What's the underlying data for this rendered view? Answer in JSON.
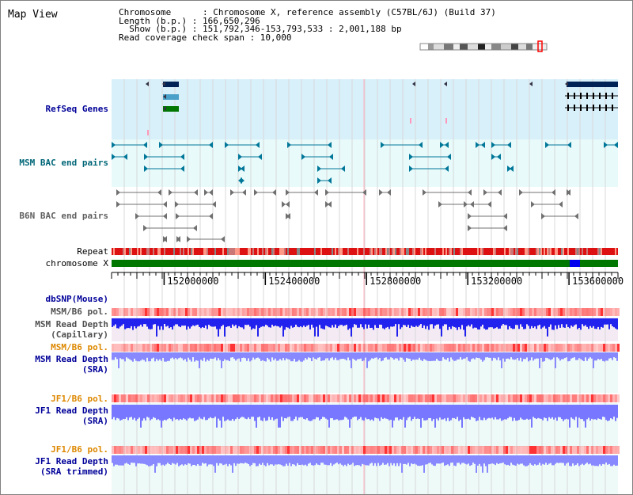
{
  "page": {
    "title": "Map View"
  },
  "info": {
    "chromosome": "Chromosome      : Chromosome X, reference assembly (C57BL/6J) (Build 37)",
    "length": "Length (b.p.) : 166,650,296",
    "show": "  Show (b.p.) : 151,792,346-153,793,533 : 2,001,188 bp",
    "coverage": "Read coverage check span : 10,000"
  },
  "tracks": {
    "refseq": "RefSeq Genes",
    "msm_bac": "MSM BAC end pairs",
    "b6n_bac": "B6N BAC end pairs",
    "repeat": "Repeat",
    "chromosome": "chromosome X",
    "dbsnp": "dbSNP(Mouse)",
    "msm_b6_pol_1": "MSM/B6 pol.",
    "msm_depth_cap_1": "MSM Read Depth",
    "msm_depth_cap_2": "(Capillary)",
    "msm_b6_pol_2": "MSM/B6 pol.",
    "msm_depth_sra_1": "MSM Read Depth",
    "msm_depth_sra_2": "(SRA)",
    "jf1_b6_pol_1": "JF1/B6 pol.",
    "jf1_depth_sra_1": "JF1 Read Depth",
    "jf1_depth_sra_2": "(SRA)",
    "jf1_b6_pol_2": "JF1/B6 pol.",
    "jf1_depth_trim_1": "JF1 Read Depth",
    "jf1_depth_trim_2": "(SRA trimmed)"
  },
  "axis": {
    "ticks": [
      "152000000",
      "152400000",
      "152800000",
      "153200000",
      "153600000"
    ],
    "start": 151792346,
    "end": 153793533
  },
  "colors": {
    "refseq_bg": "#d8f0fa",
    "msm_bac_bg": "#e8fafa",
    "depth_bg": "#eefaf8",
    "refseq_label": "#000099",
    "msm_label": "#006677",
    "b6n_label": "#606060",
    "pol_msm": "#ff6666",
    "pol_orange": "#dd8800",
    "depth_blue": "#2222ee",
    "depth_light": "#8080ff",
    "chrom_green": "#007700",
    "dark_navy": "#002255"
  }
}
